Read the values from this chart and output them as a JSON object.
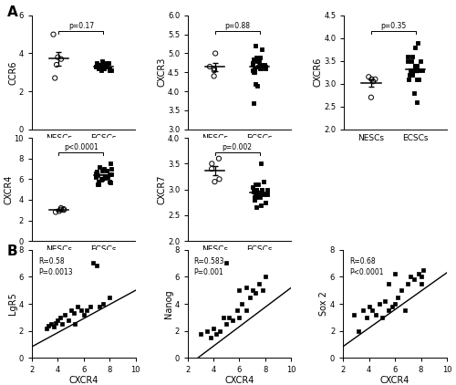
{
  "CCR6": {
    "NESCs_x": [
      1.0,
      1.0,
      1.0,
      1.0,
      1.0
    ],
    "NESCs_y": [
      3.8,
      3.7,
      5.0,
      3.4,
      2.7
    ],
    "ECSCs_x": [
      2.0,
      2.0,
      2.0,
      2.0,
      2.0,
      2.0,
      2.0,
      2.0,
      2.0,
      2.0,
      2.0,
      2.0,
      2.0,
      2.0,
      2.0,
      2.0,
      2.0,
      2.0,
      2.0,
      2.0
    ],
    "ECSCs_y": [
      3.5,
      3.3,
      3.1,
      3.4,
      3.2,
      3.6,
      3.3,
      3.4,
      3.1,
      3.3,
      3.5,
      3.2,
      3.3,
      3.4,
      3.2,
      3.5,
      3.1,
      3.3,
      3.4,
      3.2
    ],
    "pval": "p=0.17",
    "ylim": [
      0,
      6
    ],
    "yticks": [
      0,
      2,
      4,
      6
    ],
    "ylabel": "CCR6"
  },
  "CXCR3": {
    "NESCs_y": [
      4.6,
      4.65,
      5.0,
      4.55,
      4.4
    ],
    "ECSCs_y": [
      4.8,
      4.6,
      5.1,
      4.9,
      5.2,
      4.7,
      4.6,
      4.85,
      4.9,
      4.5,
      4.7,
      4.65,
      4.8,
      4.6,
      4.55,
      4.9,
      4.7,
      4.65,
      4.75,
      4.5,
      4.6,
      4.85,
      3.7,
      4.2,
      4.15
    ],
    "pval": "p=0.88",
    "ylim": [
      3.0,
      6.0
    ],
    "yticks": [
      3.0,
      3.5,
      4.0,
      4.5,
      5.0,
      5.5,
      6.0
    ],
    "ylabel": "CXCR3"
  },
  "CXCR6": {
    "NESCs_y": [
      3.1,
      3.05,
      3.15,
      2.7,
      3.1
    ],
    "ECSCs_y": [
      3.3,
      3.2,
      3.5,
      3.1,
      3.4,
      3.6,
      3.8,
      3.9,
      3.2,
      3.3,
      3.1,
      3.5,
      3.4,
      3.2,
      3.3,
      3.6,
      3.1,
      3.4,
      3.3,
      2.6,
      3.5,
      3.2,
      3.3,
      2.8
    ],
    "pval": "p=0.35",
    "ylim": [
      2.0,
      4.5
    ],
    "yticks": [
      2.0,
      2.5,
      3.0,
      3.5,
      4.0,
      4.5
    ],
    "ylabel": "CXCR6"
  },
  "CXCR4": {
    "NESCs_y": [
      3.1,
      2.9,
      3.0,
      3.2,
      3.05,
      2.8
    ],
    "ECSCs_y": [
      6.5,
      6.2,
      7.2,
      6.8,
      6.3,
      5.5,
      5.8,
      7.0,
      6.4,
      6.1,
      6.6,
      5.9,
      6.3,
      7.5,
      6.0,
      5.7,
      6.2,
      6.5,
      5.8,
      6.7,
      6.3,
      5.5,
      6.8,
      6.0,
      7.0
    ],
    "pval": "p<0.0001",
    "ylim": [
      0,
      10
    ],
    "yticks": [
      0,
      2,
      4,
      6,
      8,
      10
    ],
    "ylabel": "CXCR4"
  },
  "CXCR7": {
    "NESCs_y": [
      3.5,
      3.6,
      3.4,
      3.2,
      3.15
    ],
    "ECSCs_y": [
      3.0,
      2.9,
      2.85,
      3.0,
      2.8,
      3.05,
      3.15,
      2.9,
      3.0,
      2.75,
      2.95,
      3.1,
      2.85,
      3.0,
      2.7,
      3.5,
      2.9,
      3.0,
      3.1,
      2.65,
      2.95,
      2.85,
      2.9,
      3.0,
      2.8
    ],
    "pval": "p=0.002",
    "ylim": [
      2.0,
      4.0
    ],
    "yticks": [
      2.0,
      2.5,
      3.0,
      3.5,
      4.0
    ],
    "ylabel": "CXCR7"
  },
  "LgR5": {
    "x": [
      3.1,
      3.3,
      3.5,
      3.7,
      3.8,
      4.0,
      4.2,
      4.3,
      4.5,
      4.8,
      5.0,
      5.2,
      5.3,
      5.5,
      5.8,
      6.0,
      6.2,
      6.5,
      6.7,
      7.0,
      7.2,
      7.5,
      8.0
    ],
    "y": [
      2.2,
      2.4,
      2.5,
      2.3,
      2.6,
      2.8,
      3.0,
      2.5,
      3.2,
      2.8,
      3.5,
      3.3,
      2.5,
      3.8,
      3.5,
      3.2,
      3.5,
      3.8,
      7.0,
      6.8,
      3.8,
      4.0,
      4.5
    ],
    "R": "R=0.58",
    "P": "P=0.0013",
    "xlabel": "CXCR4",
    "ylabel": "LgR5",
    "xlim": [
      2,
      10
    ],
    "ylim": [
      0,
      8
    ],
    "yticks": [
      0,
      2,
      4,
      6,
      8
    ],
    "xticks": [
      2,
      4,
      6,
      8,
      10
    ],
    "slope": 0.52,
    "intercept": -0.2
  },
  "Nanog": {
    "x": [
      3.0,
      3.5,
      3.8,
      4.0,
      4.2,
      4.5,
      4.8,
      5.0,
      5.0,
      5.2,
      5.5,
      5.8,
      6.0,
      6.0,
      6.2,
      6.5,
      6.5,
      6.8,
      7.0,
      7.2,
      7.5,
      7.8,
      8.0
    ],
    "y": [
      1.8,
      2.0,
      1.5,
      2.2,
      1.8,
      2.0,
      3.0,
      2.5,
      7.0,
      3.0,
      2.8,
      3.5,
      3.0,
      5.0,
      4.0,
      3.5,
      5.2,
      4.5,
      5.0,
      4.8,
      5.5,
      5.0,
      6.0
    ],
    "R": "R=0.583",
    "P": "P=0.001",
    "xlabel": "CXCR4",
    "ylabel": "Nanog",
    "xlim": [
      2,
      10
    ],
    "ylim": [
      0,
      8
    ],
    "yticks": [
      0,
      2,
      4,
      6,
      8
    ],
    "xticks": [
      2,
      4,
      6,
      8,
      10
    ],
    "slope": 0.72,
    "intercept": -2.0
  },
  "Sox2": {
    "x": [
      2.8,
      3.2,
      3.5,
      3.8,
      4.0,
      4.2,
      4.5,
      4.8,
      5.0,
      5.2,
      5.5,
      5.5,
      5.8,
      6.0,
      6.0,
      6.2,
      6.5,
      6.8,
      7.0,
      7.2,
      7.5,
      7.8,
      8.0,
      8.0,
      8.2
    ],
    "y": [
      3.2,
      2.0,
      3.5,
      3.0,
      3.8,
      3.5,
      3.2,
      4.0,
      3.0,
      4.2,
      3.5,
      5.5,
      3.8,
      4.0,
      6.2,
      4.5,
      5.0,
      3.5,
      5.5,
      6.0,
      5.8,
      6.2,
      5.5,
      6.0,
      6.5
    ],
    "R": "R=0.68",
    "P": "P<0.0001",
    "xlabel": "CXCR4",
    "ylabel": "Sox 2",
    "xlim": [
      2,
      10
    ],
    "ylim": [
      0,
      8
    ],
    "yticks": [
      0,
      2,
      4,
      6,
      8
    ],
    "xticks": [
      2,
      4,
      6,
      8,
      10
    ],
    "slope": 0.68,
    "intercept": -0.5
  }
}
